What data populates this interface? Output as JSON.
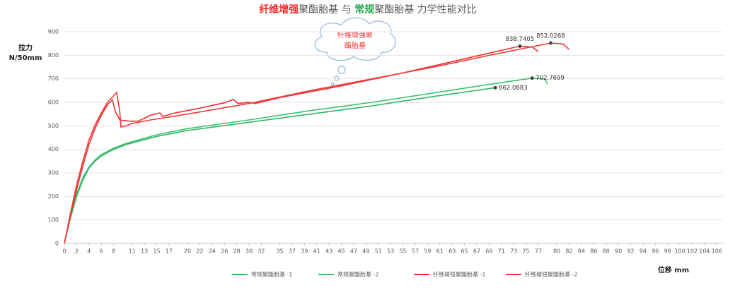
{
  "chart_data": {
    "type": "line",
    "title": [
      {
        "text": "纤维增强",
        "color": "#ee2b2b"
      },
      {
        "text": "聚酯胎基 与 ",
        "color": "#595959"
      },
      {
        "text": "常规",
        "color": "#22a84f"
      },
      {
        "text": "聚酯胎基 力学性能对比",
        "color": "#595959"
      }
    ],
    "ylabel": [
      "拉力",
      "N/50mm"
    ],
    "xlabel": "位移 mm",
    "annotation": [
      "纤维增强聚",
      "酯胎基"
    ],
    "xlim": [
      0,
      107
    ],
    "ylim": [
      0,
      900
    ],
    "yticks": [
      0,
      100,
      200,
      300,
      400,
      500,
      600,
      700,
      800,
      900
    ],
    "xticks": [
      0,
      2,
      4,
      6,
      8,
      11,
      13,
      15,
      17,
      20,
      22,
      24,
      26,
      28,
      30,
      32,
      35,
      37,
      39,
      41,
      43,
      45,
      47,
      49,
      51,
      53,
      55,
      57,
      59,
      61,
      63,
      65,
      67,
      69,
      71,
      73,
      75,
      77,
      80,
      82,
      84,
      86,
      88,
      90,
      92,
      94,
      96,
      98,
      100,
      102,
      104,
      106
    ],
    "grid": true,
    "legend": "bottom",
    "series": [
      {
        "name": "常规聚酯胎基 -1",
        "color": "#2fb565",
        "x": [
          0,
          1,
          2,
          3,
          4,
          5,
          6,
          8,
          10,
          15,
          20,
          30,
          40,
          50,
          60,
          70
        ],
        "values": [
          0,
          110,
          200,
          270,
          320,
          350,
          372,
          400,
          420,
          455,
          480,
          515,
          550,
          585,
          625,
          662
        ],
        "peak_x": 70,
        "peak": 662.0883
      },
      {
        "name": "常规聚酯胎基 -2",
        "color": "#3cc070",
        "x": [
          0,
          1,
          2,
          3,
          4,
          5,
          6,
          8,
          10,
          15,
          20,
          30,
          40,
          50,
          60,
          70,
          76,
          78,
          78.5
        ],
        "values": [
          0,
          120,
          210,
          280,
          325,
          355,
          378,
          405,
          425,
          462,
          488,
          525,
          565,
          600,
          640,
          680,
          702.8,
          700,
          678
        ],
        "peak_x": 76,
        "peak": 702.7699
      },
      {
        "name": "纤维增强聚酯胎基 -1",
        "color": "#ee3030",
        "x": [
          0,
          1,
          2,
          3,
          4,
          5,
          6,
          7,
          7.8,
          8.3,
          9,
          10.5,
          12,
          14,
          15.5,
          16,
          18,
          22,
          26,
          27.5,
          28.2,
          30,
          31,
          35,
          45,
          55,
          65,
          74,
          76,
          77
        ],
        "values": [
          0,
          120,
          230,
          330,
          420,
          490,
          545,
          590,
          610,
          560,
          525,
          520,
          520,
          545,
          555,
          540,
          555,
          575,
          598,
          612,
          595,
          600,
          595,
          620,
          670,
          725,
          785,
          838.7,
          835,
          815
        ],
        "peak_x": 74,
        "peak": 838.7405
      },
      {
        "name": "纤维增强聚酯胎基 -2",
        "color": "#f23a3a",
        "x": [
          0,
          1,
          2,
          3,
          4,
          5,
          6,
          7,
          8.5,
          9,
          9.2,
          10,
          11,
          14,
          20,
          30,
          40,
          50,
          60,
          70,
          79,
          81,
          82
        ],
        "values": [
          0,
          130,
          250,
          350,
          440,
          505,
          555,
          600,
          642,
          560,
          495,
          500,
          510,
          525,
          550,
          595,
          650,
          700,
          750,
          805,
          852,
          848,
          825
        ],
        "peak_x": 79,
        "peak": 852.0268
      }
    ]
  }
}
